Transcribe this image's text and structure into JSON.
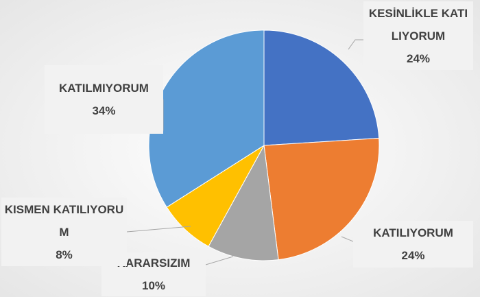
{
  "chart_data": {
    "type": "pie",
    "categories": [
      "KESİNLİKLE KATILIYORUM",
      "KATILIYORUM",
      "KARARSIZIM",
      "KISMEN KATILIYORUM",
      "KATILMIYORUM"
    ],
    "values": [
      24,
      24,
      10,
      8,
      34
    ],
    "value_labels": [
      "24%",
      "24%",
      "10%",
      "8%",
      "34%"
    ],
    "colors": [
      "#4472c4",
      "#ed7d31",
      "#a5a5a5",
      "#ffc000",
      "#5b9bd5"
    ]
  }
}
